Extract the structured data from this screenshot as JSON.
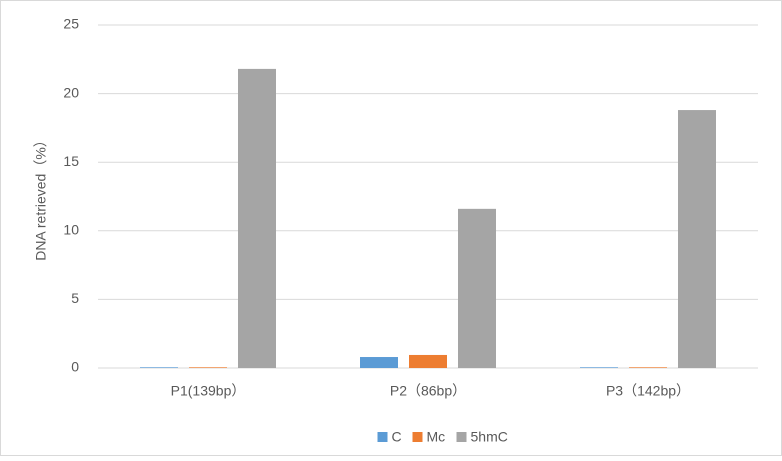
{
  "chart_data": {
    "type": "bar",
    "y_label": "DNA retrieved（%）",
    "categories": [
      "P1(139bp）",
      "P2（86bp）",
      "P3（142bp）"
    ],
    "series": [
      {
        "name": "C",
        "color": "#5b9bd5",
        "values": [
          0.05,
          0.8,
          0.05
        ]
      },
      {
        "name": "Mc",
        "color": "#ed7d31",
        "values": [
          0.05,
          0.95,
          0.05
        ]
      },
      {
        "name": "5hmC",
        "color": "#a5a5a5",
        "values": [
          21.8,
          11.6,
          18.8
        ]
      }
    ],
    "ylim": [
      0,
      25
    ],
    "yticks": [
      0,
      5,
      10,
      15,
      20,
      25
    ],
    "grid": true,
    "legend": "bottom"
  }
}
